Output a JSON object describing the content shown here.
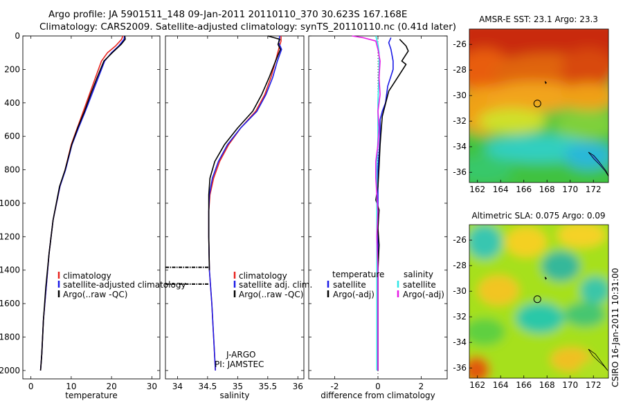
{
  "header": {
    "line1": "Argo profile: JA 5901511_148 09-Jan-2011 20110110_370 30.623S 167.168E",
    "line2": "Climatology: CARS2009. Satellite-adjusted climatology: synTS_20110110.nc (0.41d later)"
  },
  "side_label": "CSIRO 16-Jan-2011 10:31:00",
  "colors": {
    "red": "#e8231e",
    "blue": "#1a1ae6",
    "black": "#000000",
    "cyan": "#2ee6e6",
    "magenta": "#e61ae6"
  },
  "chart_data": [
    {
      "type": "line",
      "panel": "temperature",
      "xlabel": "temperature",
      "ylabel": "",
      "xlim": [
        -2,
        32
      ],
      "ylim": [
        2050,
        0
      ],
      "xticks": [
        0,
        10,
        20,
        30
      ],
      "yticks": [
        0,
        200,
        400,
        600,
        800,
        1000,
        1200,
        1400,
        1600,
        1800,
        2000
      ],
      "legend": [
        "climatology",
        "satellite-adjusted climatology",
        "Argo(..raw -QC)"
      ],
      "series": [
        {
          "name": "climatology",
          "color": "red",
          "points": [
            [
              22.8,
              0
            ],
            [
              22.5,
              20
            ],
            [
              21,
              60
            ],
            [
              19,
              100
            ],
            [
              17.5,
              150
            ],
            [
              16,
              250
            ],
            [
              14.5,
              350
            ],
            [
              13,
              450
            ],
            [
              11.5,
              550
            ],
            [
              10,
              650
            ],
            [
              8.5,
              800
            ],
            [
              7.2,
              900
            ],
            [
              5.5,
              1100
            ],
            [
              4.5,
              1300
            ],
            [
              3.8,
              1500
            ],
            [
              3.1,
              1700
            ],
            [
              2.7,
              1900
            ],
            [
              2.4,
              2000
            ]
          ]
        },
        {
          "name": "satellite-adjusted climatology",
          "color": "blue",
          "points": [
            [
              23.2,
              0
            ],
            [
              23.1,
              20
            ],
            [
              21.8,
              60
            ],
            [
              20,
              100
            ],
            [
              18.3,
              150
            ],
            [
              16.7,
              250
            ],
            [
              15.1,
              350
            ],
            [
              13.5,
              450
            ],
            [
              11.8,
              550
            ],
            [
              10.2,
              650
            ],
            [
              8.6,
              800
            ],
            [
              7.2,
              900
            ],
            [
              5.5,
              1100
            ],
            [
              4.5,
              1300
            ],
            [
              3.8,
              1500
            ],
            [
              3.1,
              1700
            ],
            [
              2.7,
              1900
            ],
            [
              2.4,
              2000
            ]
          ]
        },
        {
          "name": "Argo(..raw -QC)",
          "color": "black",
          "points": [
            [
              23.3,
              0
            ],
            [
              23.4,
              20
            ],
            [
              22.4,
              50
            ],
            [
              20.2,
              100
            ],
            [
              18.1,
              150
            ],
            [
              16.4,
              250
            ],
            [
              14.8,
              350
            ],
            [
              13.3,
              450
            ],
            [
              11.6,
              550
            ],
            [
              10.1,
              650
            ],
            [
              8.5,
              800
            ],
            [
              7.1,
              900
            ],
            [
              5.5,
              1100
            ],
            [
              4.5,
              1300
            ],
            [
              3.7,
              1500
            ],
            [
              3.1,
              1700
            ],
            [
              2.7,
              1900
            ],
            [
              2.4,
              2000
            ]
          ]
        }
      ]
    },
    {
      "type": "line",
      "panel": "salinity",
      "xlabel": "salinity",
      "ylabel": "",
      "xlim": [
        33.8,
        36.1
      ],
      "ylim": [
        2050,
        0
      ],
      "xticks": [
        34,
        34.5,
        35,
        35.5,
        36
      ],
      "legend": [
        "climatology",
        "satellite adj. clim.",
        "Argo(..raw -QC)"
      ],
      "note_lines": [
        "J-ARGO",
        "PI: JAMSTEC"
      ],
      "series": [
        {
          "name": "climatology",
          "color": "red",
          "points": [
            [
              35.72,
              0
            ],
            [
              35.72,
              30
            ],
            [
              35.68,
              80
            ],
            [
              35.63,
              150
            ],
            [
              35.55,
              250
            ],
            [
              35.45,
              350
            ],
            [
              35.3,
              450
            ],
            [
              35.05,
              550
            ],
            [
              34.85,
              650
            ],
            [
              34.7,
              750
            ],
            [
              34.6,
              850
            ],
            [
              34.54,
              950
            ],
            [
              34.52,
              1050
            ],
            [
              34.52,
              1200
            ],
            [
              34.53,
              1400
            ],
            [
              34.57,
              1600
            ],
            [
              34.6,
              1800
            ],
            [
              34.63,
              2000
            ]
          ]
        },
        {
          "name": "satellite adj. clim.",
          "color": "blue",
          "points": [
            [
              35.7,
              0
            ],
            [
              35.68,
              40
            ],
            [
              35.73,
              80
            ],
            [
              35.66,
              150
            ],
            [
              35.58,
              250
            ],
            [
              35.47,
              350
            ],
            [
              35.32,
              450
            ],
            [
              35.05,
              550
            ],
            [
              34.83,
              650
            ],
            [
              34.68,
              750
            ],
            [
              34.58,
              850
            ],
            [
              34.53,
              950
            ],
            [
              34.52,
              1050
            ],
            [
              34.52,
              1200
            ],
            [
              34.53,
              1400
            ],
            [
              34.57,
              1600
            ],
            [
              34.6,
              1800
            ],
            [
              34.63,
              2000
            ]
          ]
        },
        {
          "name": "Argo(..raw -QC)",
          "color": "black",
          "points": [
            [
              35.5,
              0
            ],
            [
              35.6,
              10
            ],
            [
              35.7,
              20
            ],
            [
              35.67,
              50
            ],
            [
              35.71,
              80
            ],
            [
              35.63,
              150
            ],
            [
              35.52,
              250
            ],
            [
              35.4,
              350
            ],
            [
              35.25,
              450
            ],
            [
              35.0,
              550
            ],
            [
              34.78,
              650
            ],
            [
              34.62,
              750
            ],
            [
              34.54,
              850
            ],
            [
              34.52,
              950
            ],
            [
              34.52,
              1050
            ],
            [
              34.52,
              1200
            ],
            [
              34.53,
              1400
            ]
          ]
        }
      ],
      "dotted": [
        {
          "y": 1383,
          "x_from": 33.8,
          "x_to": 34.53
        },
        {
          "y": 1483,
          "x_from": 33.8,
          "x_to": 34.53
        }
      ]
    },
    {
      "type": "line",
      "panel": "difference",
      "xlabel": "difference from climatology",
      "ylabel": "",
      "xlim": [
        -3.2,
        3.2
      ],
      "ylim": [
        2050,
        0
      ],
      "xticks": [
        -2,
        0,
        2
      ],
      "legend_headers": [
        "temperature",
        "salinity"
      ],
      "legend_left": [
        "satellite",
        "Argo(-adj)"
      ],
      "legend_right": [
        "satellite",
        "Argo(-adj)"
      ],
      "series": [
        {
          "name": "temperature satellite",
          "color": "blue",
          "points": [
            [
              0.6,
              10
            ],
            [
              0.5,
              40
            ],
            [
              0.6,
              80
            ],
            [
              0.7,
              150
            ],
            [
              0.7,
              200
            ],
            [
              0.45,
              300
            ],
            [
              0.35,
              400
            ],
            [
              0.2,
              450
            ],
            [
              0.1,
              500
            ],
            [
              0.1,
              600
            ],
            [
              0.05,
              700
            ],
            [
              0.0,
              800
            ],
            [
              0.0,
              900
            ],
            [
              0.0,
              1000
            ],
            [
              0.0,
              1200
            ],
            [
              0.0,
              1400
            ],
            [
              0.0,
              1600
            ],
            [
              0.0,
              1800
            ],
            [
              0.0,
              2000
            ]
          ]
        },
        {
          "name": "temperature Argo(-adj)",
          "color": "black",
          "points": [
            [
              1.0,
              20
            ],
            [
              1.3,
              60
            ],
            [
              1.4,
              90
            ],
            [
              1.1,
              150
            ],
            [
              1.3,
              170
            ],
            [
              1.0,
              230
            ],
            [
              0.8,
              270
            ],
            [
              0.5,
              330
            ],
            [
              0.4,
              380
            ],
            [
              0.3,
              430
            ],
            [
              0.2,
              480
            ],
            [
              0.15,
              560
            ],
            [
              0.1,
              650
            ],
            [
              0.05,
              780
            ],
            [
              0.0,
              900
            ],
            [
              -0.1,
              980
            ],
            [
              0.05,
              1040
            ],
            [
              0.0,
              1150
            ],
            [
              0.05,
              1250
            ],
            [
              0.0,
              1400
            ],
            [
              0.0,
              1600
            ],
            [
              0.0,
              1800
            ],
            [
              0.0,
              2000
            ]
          ]
        },
        {
          "name": "salinity satellite",
          "color": "cyan",
          "points": [
            [
              -0.1,
              0
            ],
            [
              0.0,
              50
            ],
            [
              0.05,
              100
            ],
            [
              0.05,
              200
            ],
            [
              0.0,
              400
            ],
            [
              0.0,
              600
            ],
            [
              -0.05,
              800
            ],
            [
              -0.05,
              1000
            ],
            [
              -0.05,
              1200
            ],
            [
              -0.05,
              1400
            ],
            [
              -0.05,
              1600
            ],
            [
              -0.05,
              1800
            ],
            [
              -0.05,
              2000
            ]
          ]
        },
        {
          "name": "salinity Argo(-adj)",
          "color": "magenta",
          "points": [
            [
              -1.2,
              0
            ],
            [
              -0.7,
              10
            ],
            [
              -0.1,
              30
            ],
            [
              0.0,
              80
            ],
            [
              0.1,
              150
            ],
            [
              0.05,
              250
            ],
            [
              0.1,
              350
            ],
            [
              0.0,
              450
            ],
            [
              0.05,
              550
            ],
            [
              0.0,
              650
            ],
            [
              -0.1,
              750
            ],
            [
              -0.1,
              850
            ],
            [
              -0.05,
              950
            ],
            [
              0.0,
              1050
            ],
            [
              -0.05,
              1200
            ],
            [
              0.0,
              1400
            ],
            [
              0.0,
              1600
            ],
            [
              0.0,
              1800
            ],
            [
              0.0,
              2000
            ]
          ]
        }
      ]
    },
    {
      "type": "heatmap",
      "panel": "sst",
      "title": "AMSR-E SST: 23.1 Argo: 23.3",
      "xticks": [
        162,
        164,
        166,
        168,
        170,
        172
      ],
      "yticks": [
        -26,
        -28,
        -30,
        -32,
        -34,
        -36
      ],
      "xlim": [
        161.3,
        173.3
      ],
      "ylim": [
        -36.8,
        -24.8
      ],
      "marker": {
        "lon": 167.168,
        "lat": -30.623
      }
    },
    {
      "type": "heatmap",
      "panel": "sla",
      "title": "Altimetric SLA: 0.075 Argo: 0.09",
      "xticks": [
        162,
        164,
        166,
        168,
        170,
        172
      ],
      "yticks": [
        -26,
        -28,
        -30,
        -32,
        -34,
        -36
      ],
      "xlim": [
        161.3,
        173.3
      ],
      "ylim": [
        -36.8,
        -24.8
      ],
      "marker": {
        "lon": 167.168,
        "lat": -30.623
      }
    }
  ]
}
